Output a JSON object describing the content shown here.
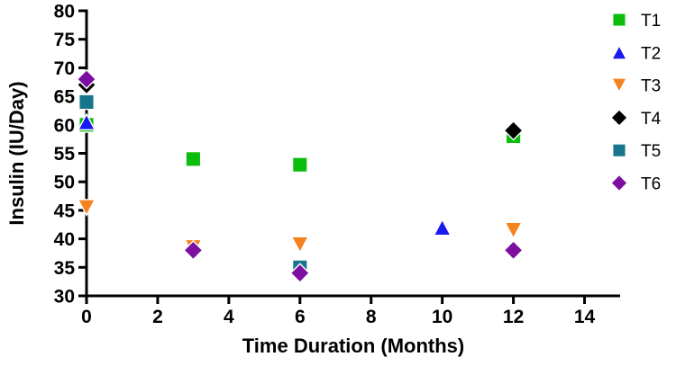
{
  "figure": {
    "background": "#ffffff",
    "axis_color": "#000000"
  },
  "chart_data": {
    "type": "scatter",
    "title": "",
    "xlabel": "Time Duration (Months)",
    "ylabel": "Insulin (IU/Day)",
    "xlim": [
      0,
      15
    ],
    "ylim": [
      30,
      80
    ],
    "xticks": [
      0,
      2,
      4,
      6,
      8,
      10,
      12,
      14
    ],
    "yticks": [
      30,
      35,
      40,
      45,
      50,
      55,
      60,
      65,
      70,
      75,
      80
    ],
    "grid": false,
    "legend_position": "right-outside",
    "legend_entries": [
      "T1",
      "T2",
      "T3",
      "T4",
      "T5",
      "T6"
    ],
    "series": [
      {
        "name": "T1",
        "marker": "square",
        "color": "#0DBD0D",
        "points": [
          [
            0,
            60
          ],
          [
            3,
            54
          ],
          [
            6,
            53
          ],
          [
            12,
            58
          ]
        ]
      },
      {
        "name": "T2",
        "marker": "triangle-up",
        "color": "#1A1AF0",
        "points": [
          [
            0,
            60.5
          ],
          [
            10,
            42
          ]
        ]
      },
      {
        "name": "T3",
        "marker": "triangle-down",
        "color": "#F5821F",
        "points": [
          [
            0,
            45.5
          ],
          [
            3,
            38.5
          ],
          [
            6,
            39
          ],
          [
            12,
            41.5
          ]
        ]
      },
      {
        "name": "T4",
        "marker": "diamond",
        "color": "#000000",
        "points": [
          [
            0,
            67
          ],
          [
            12,
            59
          ]
        ]
      },
      {
        "name": "T5",
        "marker": "square",
        "color": "#17768D",
        "points": [
          [
            0,
            64
          ],
          [
            6,
            35
          ]
        ]
      },
      {
        "name": "T6",
        "marker": "diamond",
        "color": "#7C0FA0",
        "points": [
          [
            0,
            68
          ],
          [
            3,
            38
          ],
          [
            6,
            34
          ],
          [
            12,
            38
          ]
        ]
      }
    ]
  }
}
